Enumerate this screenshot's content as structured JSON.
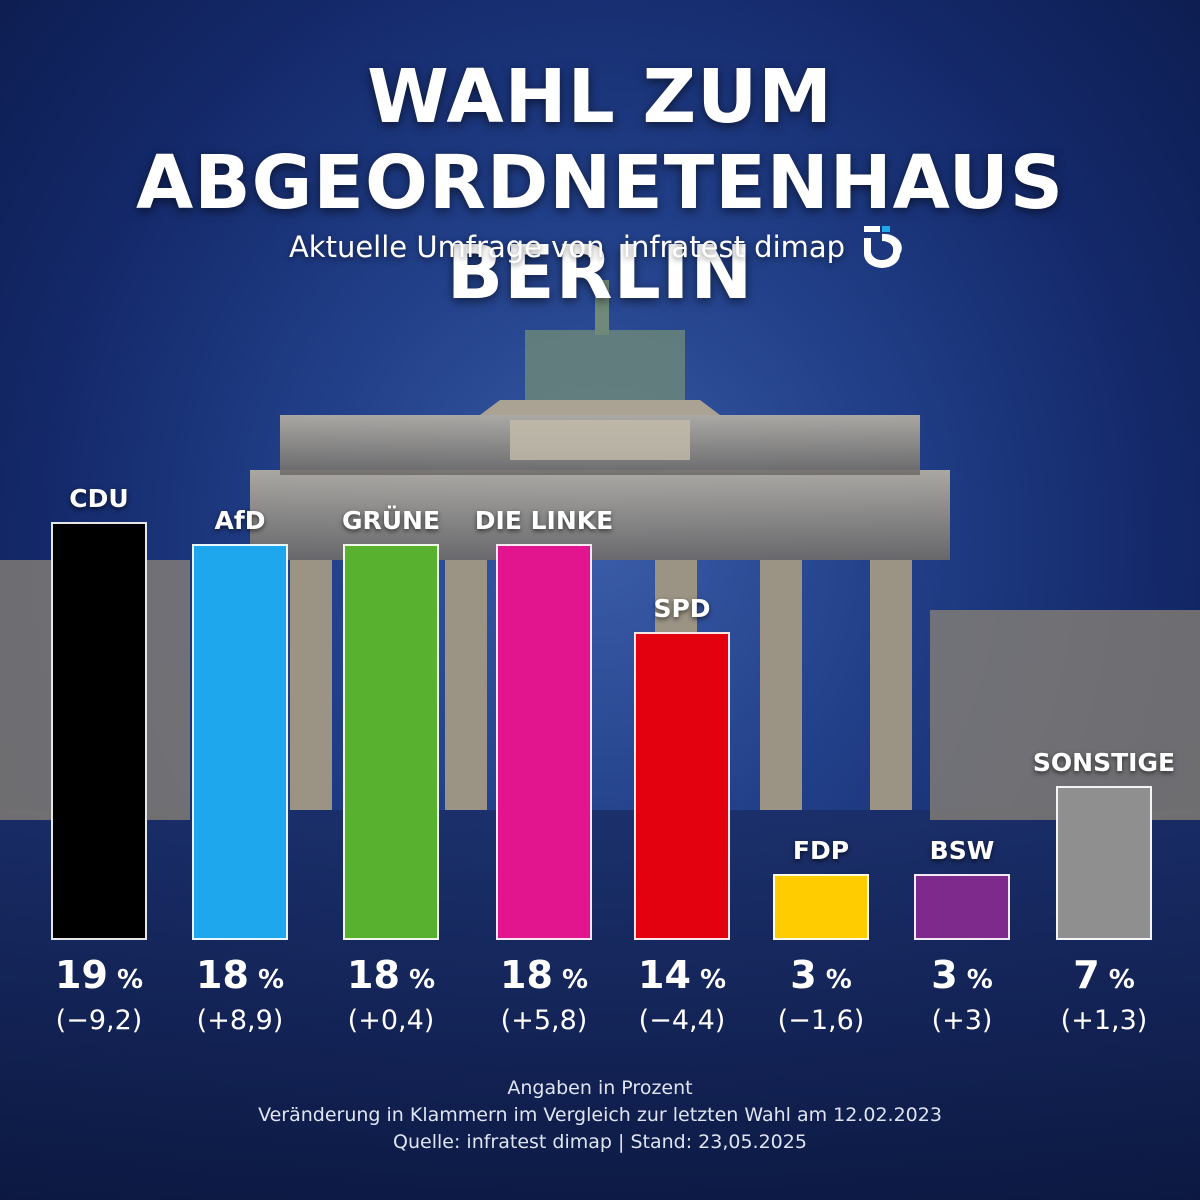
{
  "title_line1": "WAHL ZUM",
  "title_line2": "ABGEORDNETENHAUS BERLIN",
  "subtitle": "Aktuelle Umfrage von  infratest dimap",
  "logo_icon": "infratest-dimap-logo-icon",
  "footer": {
    "line1": "Angaben in Prozent",
    "line2": "Veränderung in Klammern im Vergleich zur letzten Wahl am 12.02.2023",
    "line3": "Quelle: infratest dimap | Stand: 23,05.2025"
  },
  "chart_data": {
    "type": "bar",
    "title": "WAHL ZUM ABGEORDNETENHAUS BERLIN",
    "subtitle": "Aktuelle Umfrage von infratest dimap",
    "unit": "%",
    "categories": [
      "CDU",
      "AfD",
      "GRÜNE",
      "DIE LINKE",
      "SPD",
      "FDP",
      "BSW",
      "SONSTIGE"
    ],
    "values": [
      19,
      18,
      18,
      18,
      14,
      3,
      3,
      7
    ],
    "value_labels": [
      "19",
      "18",
      "18",
      "18",
      "14",
      "3",
      "3",
      "7"
    ],
    "changes": [
      "(−9,2)",
      "(+8,9)",
      "(+0,4)",
      "(+5,8)",
      "(−4,4)",
      "(−1,6)",
      "(+3)",
      "(+1,3)"
    ],
    "colors": [
      "#000000",
      "#1ea7ec",
      "#58b12f",
      "#e3158e",
      "#e3000f",
      "#ffcc00",
      "#7e2a8c",
      "#8f8f8f"
    ],
    "grid": false,
    "legend": "none"
  }
}
